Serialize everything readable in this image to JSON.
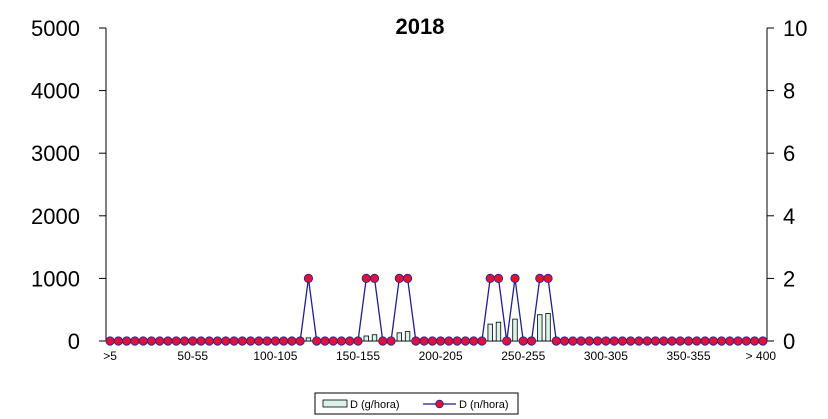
{
  "chart_data": {
    "type": "bar+line",
    "title": "2018",
    "x_tick_labels": [
      ">5",
      "50-55",
      "100-105",
      "150-155",
      "200-205",
      "250-255",
      "300-305",
      "350-355",
      "> 400"
    ],
    "n_categories": 80,
    "left_axis": {
      "ticks": [
        "0",
        "1000",
        "2000",
        "3000",
        "4000",
        "5000"
      ],
      "ylim": [
        0,
        5000
      ]
    },
    "right_axis": {
      "ticks": [
        "0",
        "2",
        "4",
        "6",
        "8",
        "10"
      ],
      "ylim": [
        0,
        10
      ]
    },
    "series": [
      {
        "name": "D (g/hora)",
        "kind": "bar",
        "axis": "left",
        "color": "#d9f2ec",
        "values": [
          0,
          0,
          0,
          0,
          0,
          0,
          0,
          0,
          0,
          0,
          0,
          0,
          0,
          0,
          0,
          0,
          0,
          0,
          0,
          0,
          0,
          0,
          0,
          0,
          50,
          0,
          0,
          0,
          0,
          0,
          0,
          80,
          100,
          0,
          0,
          130,
          150,
          0,
          0,
          0,
          0,
          0,
          0,
          0,
          0,
          0,
          270,
          300,
          0,
          350,
          0,
          0,
          420,
          440,
          0,
          0,
          0,
          0,
          0,
          0,
          0,
          0,
          0,
          0,
          0,
          0,
          0,
          0,
          0,
          0,
          0,
          0,
          0,
          0,
          0,
          0,
          0,
          0,
          0,
          0
        ]
      },
      {
        "name": "D (n/hora)",
        "kind": "line",
        "axis": "right",
        "color": "#1f1f8f",
        "marker_color": "#e0103a",
        "values": [
          0,
          0,
          0,
          0,
          0,
          0,
          0,
          0,
          0,
          0,
          0,
          0,
          0,
          0,
          0,
          0,
          0,
          0,
          0,
          0,
          0,
          0,
          0,
          0,
          2,
          0,
          0,
          0,
          0,
          0,
          0,
          2,
          2,
          0,
          0,
          2,
          2,
          0,
          0,
          0,
          0,
          0,
          0,
          0,
          0,
          0,
          2,
          2,
          0,
          2,
          0,
          0,
          2,
          2,
          0,
          0,
          0,
          0,
          0,
          0,
          0,
          0,
          0,
          0,
          0,
          0,
          0,
          0,
          0,
          0,
          0,
          0,
          0,
          0,
          0,
          0,
          0,
          0,
          0,
          0
        ]
      }
    ],
    "legend": {
      "placement": "bottom",
      "items": [
        "D (g/hora)",
        "D (n/hora)"
      ]
    }
  }
}
